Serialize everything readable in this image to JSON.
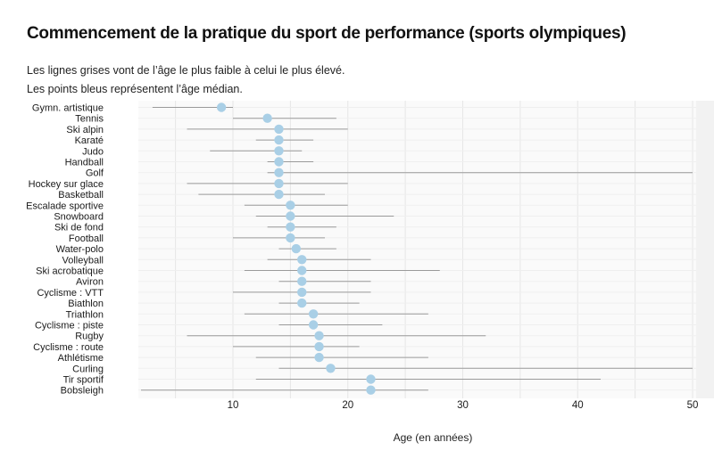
{
  "chart_data": {
    "type": "dot-range",
    "title": "Commencement de la pratique du sport de performance (sports olympiques)",
    "subtitle_lines": [
      "Les lignes grises vont de l’âge le plus faible à celui le plus élevé.",
      "Les points bleus représentent l’âge médian."
    ],
    "xlabel": "Age (en années)",
    "ylabel": "",
    "xlim": [
      2,
      50
    ],
    "xticks": [
      10,
      20,
      30,
      40,
      50
    ],
    "grid": true,
    "colors": {
      "range_line": "#9a9a9a",
      "median_dot": "#a9cfe6",
      "grid": "#e6e6e6"
    },
    "categories": [
      "Gymn. artistique",
      "Tennis",
      "Ski alpin",
      "Karaté",
      "Judo",
      "Handball",
      "Golf",
      "Hockey sur glace",
      "Basketball",
      "Escalade sportive",
      "Snowboard",
      "Ski de fond",
      "Football",
      "Water-polo",
      "Volleyball",
      "Ski acrobatique",
      "Aviron",
      "Cyclisme : VTT",
      "Biathlon",
      "Triathlon",
      "Cyclisme : piste",
      "Rugby",
      "Cyclisme : route",
      "Athlétisme",
      "Curling",
      "Tir sportif",
      "Bobsleigh"
    ],
    "series": [
      {
        "name": "Âge le plus faible",
        "values": [
          3,
          10,
          6,
          12,
          8,
          13,
          13,
          6,
          7,
          11,
          12,
          13,
          10,
          14,
          13,
          11,
          14,
          10,
          14,
          11,
          14,
          6,
          10,
          12,
          14,
          12,
          2
        ]
      },
      {
        "name": "Âge médian",
        "values": [
          9,
          13,
          14,
          14,
          14,
          14,
          14,
          14,
          14,
          15,
          15,
          15,
          15,
          15.5,
          16,
          16,
          16,
          16,
          16,
          17,
          17,
          17.5,
          17.5,
          17.5,
          18.5,
          22,
          22
        ]
      },
      {
        "name": "Âge le plus élevé",
        "values": [
          10,
          19,
          20,
          17,
          16,
          17,
          50,
          20,
          18,
          20,
          24,
          19,
          18,
          19,
          22,
          28,
          22,
          22,
          21,
          27,
          23,
          32,
          21,
          27,
          50,
          42,
          27
        ]
      }
    ]
  }
}
